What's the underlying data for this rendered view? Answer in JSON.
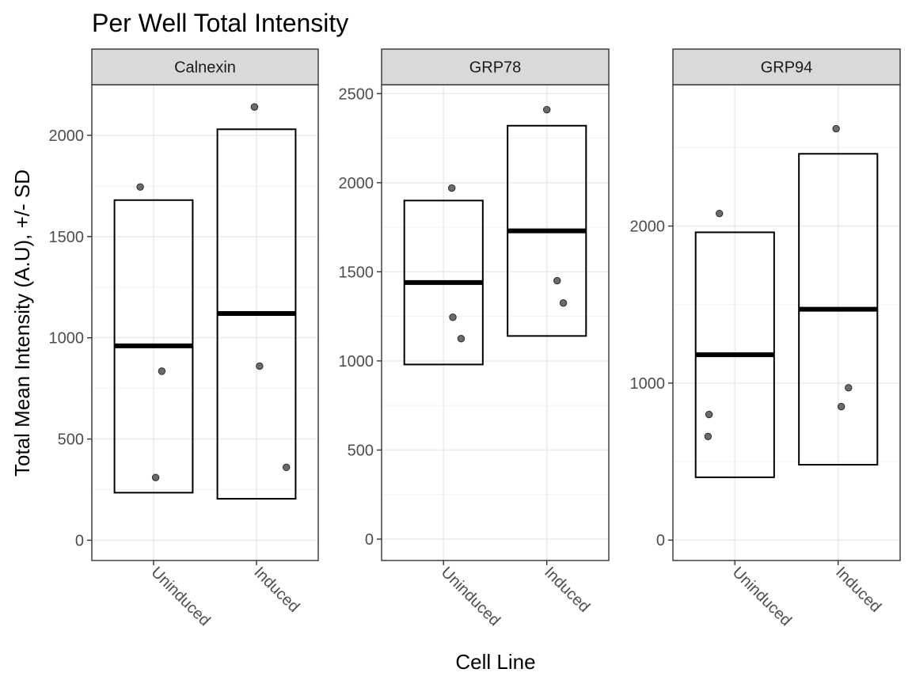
{
  "chart_data": {
    "type": "crossbar",
    "title": "Per Well Total Intensity",
    "xlabel": "Cell Line",
    "ylabel": "Total Mean Intensity (A.U), +/- SD",
    "categories": [
      "Uninduced",
      "Induced"
    ],
    "grid": true,
    "panels": [
      {
        "name": "Calnexin",
        "ylim": [
          -100,
          2250
        ],
        "yticks": [
          0,
          500,
          1000,
          1500,
          2000
        ],
        "bars": [
          {
            "category": "Uninduced",
            "mean": 960,
            "lower": 235,
            "upper": 1680
          },
          {
            "category": "Induced",
            "mean": 1120,
            "lower": 205,
            "upper": 2030
          }
        ],
        "points": [
          {
            "category": "Uninduced",
            "y": 1745,
            "jitter": -0.13
          },
          {
            "category": "Uninduced",
            "y": 835,
            "jitter": 0.08
          },
          {
            "category": "Uninduced",
            "y": 310,
            "jitter": 0.02
          },
          {
            "category": "Induced",
            "y": 2140,
            "jitter": -0.02
          },
          {
            "category": "Induced",
            "y": 860,
            "jitter": 0.03
          },
          {
            "category": "Induced",
            "y": 360,
            "jitter": 0.29
          }
        ]
      },
      {
        "name": "GRP78",
        "ylim": [
          -120,
          2550
        ],
        "yticks": [
          0,
          500,
          1000,
          1500,
          2000,
          2500
        ],
        "bars": [
          {
            "category": "Uninduced",
            "mean": 1440,
            "lower": 980,
            "upper": 1900
          },
          {
            "category": "Induced",
            "mean": 1730,
            "lower": 1140,
            "upper": 2320
          }
        ],
        "points": [
          {
            "category": "Uninduced",
            "y": 1970,
            "jitter": 0.08
          },
          {
            "category": "Uninduced",
            "y": 1245,
            "jitter": 0.09
          },
          {
            "category": "Uninduced",
            "y": 1125,
            "jitter": 0.17
          },
          {
            "category": "Induced",
            "y": 2410,
            "jitter": 0.0
          },
          {
            "category": "Induced",
            "y": 1450,
            "jitter": 0.1
          },
          {
            "category": "Induced",
            "y": 1325,
            "jitter": 0.16
          }
        ]
      },
      {
        "name": "GRP94",
        "ylim": [
          -130,
          2900
        ],
        "yticks": [
          0,
          1000,
          2000
        ],
        "bars": [
          {
            "category": "Uninduced",
            "mean": 1180,
            "lower": 400,
            "upper": 1960
          },
          {
            "category": "Induced",
            "mean": 1470,
            "lower": 480,
            "upper": 2460
          }
        ],
        "points": [
          {
            "category": "Uninduced",
            "y": 2080,
            "jitter": -0.15
          },
          {
            "category": "Uninduced",
            "y": 800,
            "jitter": -0.25
          },
          {
            "category": "Uninduced",
            "y": 660,
            "jitter": -0.26
          },
          {
            "category": "Induced",
            "y": 2620,
            "jitter": -0.02
          },
          {
            "category": "Induced",
            "y": 970,
            "jitter": 0.1
          },
          {
            "category": "Induced",
            "y": 850,
            "jitter": 0.03
          }
        ]
      }
    ]
  }
}
